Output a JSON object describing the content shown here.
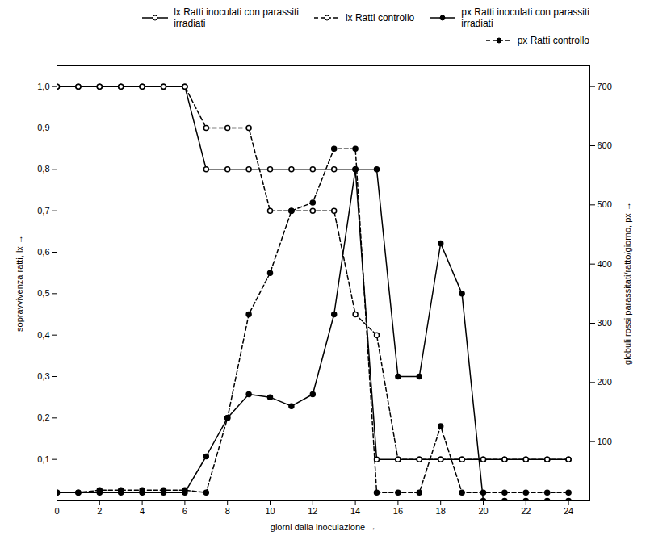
{
  "chart_data": {
    "type": "line",
    "xlabel": "giorni dalla inoculazione",
    "ylabel": "sopravvivenza ratti, lx",
    "y2label": "globuli rossi parassitati/ratto/giorno, px",
    "x": [
      0,
      1,
      2,
      3,
      4,
      5,
      6,
      7,
      8,
      9,
      10,
      11,
      12,
      13,
      14,
      15,
      16,
      17,
      18,
      19,
      20,
      21,
      22,
      23,
      24
    ],
    "series": [
      {
        "name": "lx Ratti inoculati con parassiti\nirradiati",
        "color": "black",
        "marker": "open_circle",
        "line_style": "solid",
        "values": [
          1.0,
          1.0,
          1.0,
          1.0,
          1.0,
          1.0,
          1.0,
          0.8,
          0.8,
          0.8,
          0.8,
          0.8,
          0.8,
          0.8,
          0.8,
          0.1,
          0.1,
          0.1,
          0.1,
          0.1,
          0.1,
          0.1,
          0.1,
          0.1,
          0.1
        ]
      },
      {
        "name": "lx Ratti controllo",
        "color": "black",
        "marker": "open_circle",
        "line_style": "dashed",
        "values": [
          1.0,
          1.0,
          1.0,
          1.0,
          1.0,
          1.0,
          1.0,
          0.9,
          0.9,
          0.9,
          0.7,
          0.7,
          0.7,
          0.7,
          0.45,
          0.4,
          0.1,
          0.1,
          0.1,
          0.1,
          0.1,
          0.1,
          0.1,
          0.1,
          0.1
        ]
      },
      {
        "name": "px Ratti inoculati con parassiti\nirradiati",
        "color": "black",
        "marker": "circle",
        "line_style": "solid",
        "axis": "y2",
        "values": [
          14,
          14,
          14,
          14,
          14,
          14,
          14,
          75,
          140,
          180,
          175,
          160,
          180,
          315,
          560,
          560,
          210,
          210,
          435,
          350,
          0,
          0,
          0,
          0,
          0
        ]
      },
      {
        "name": "px Ratti controllo",
        "color": "black",
        "marker": "circle",
        "line_style": "dashed",
        "axis": "y2",
        "values": [
          14,
          14,
          18,
          18,
          18,
          18,
          18,
          14,
          140,
          315,
          385,
          490,
          504,
          595,
          595,
          14,
          14,
          14,
          126,
          14,
          14,
          14,
          14,
          14,
          14
        ]
      }
    ],
    "xlim": [
      0,
      25
    ],
    "xticks": [
      0,
      2,
      4,
      6,
      8,
      10,
      12,
      14,
      16,
      18,
      20,
      22,
      24
    ],
    "ylim": [
      0,
      1.05
    ],
    "yticks": [
      {
        "value": 0.1,
        "label": "0,1"
      },
      {
        "value": 0.2,
        "label": "0,2"
      },
      {
        "value": 0.3,
        "label": "0,3"
      },
      {
        "value": 0.4,
        "label": "0,4"
      },
      {
        "value": 0.5,
        "label": "0,5"
      },
      {
        "value": 0.6,
        "label": "0,6"
      },
      {
        "value": 0.7,
        "label": "0,7"
      },
      {
        "value": 0.8,
        "label": "0,8"
      },
      {
        "value": 0.9,
        "label": "0,9"
      },
      {
        "value": 1.0,
        "label": "1,0"
      }
    ],
    "y2lim": [
      0,
      735
    ],
    "y2ticks": [
      100,
      200,
      300,
      400,
      500,
      600,
      700
    ],
    "legend": "upper right",
    "grid": false
  }
}
